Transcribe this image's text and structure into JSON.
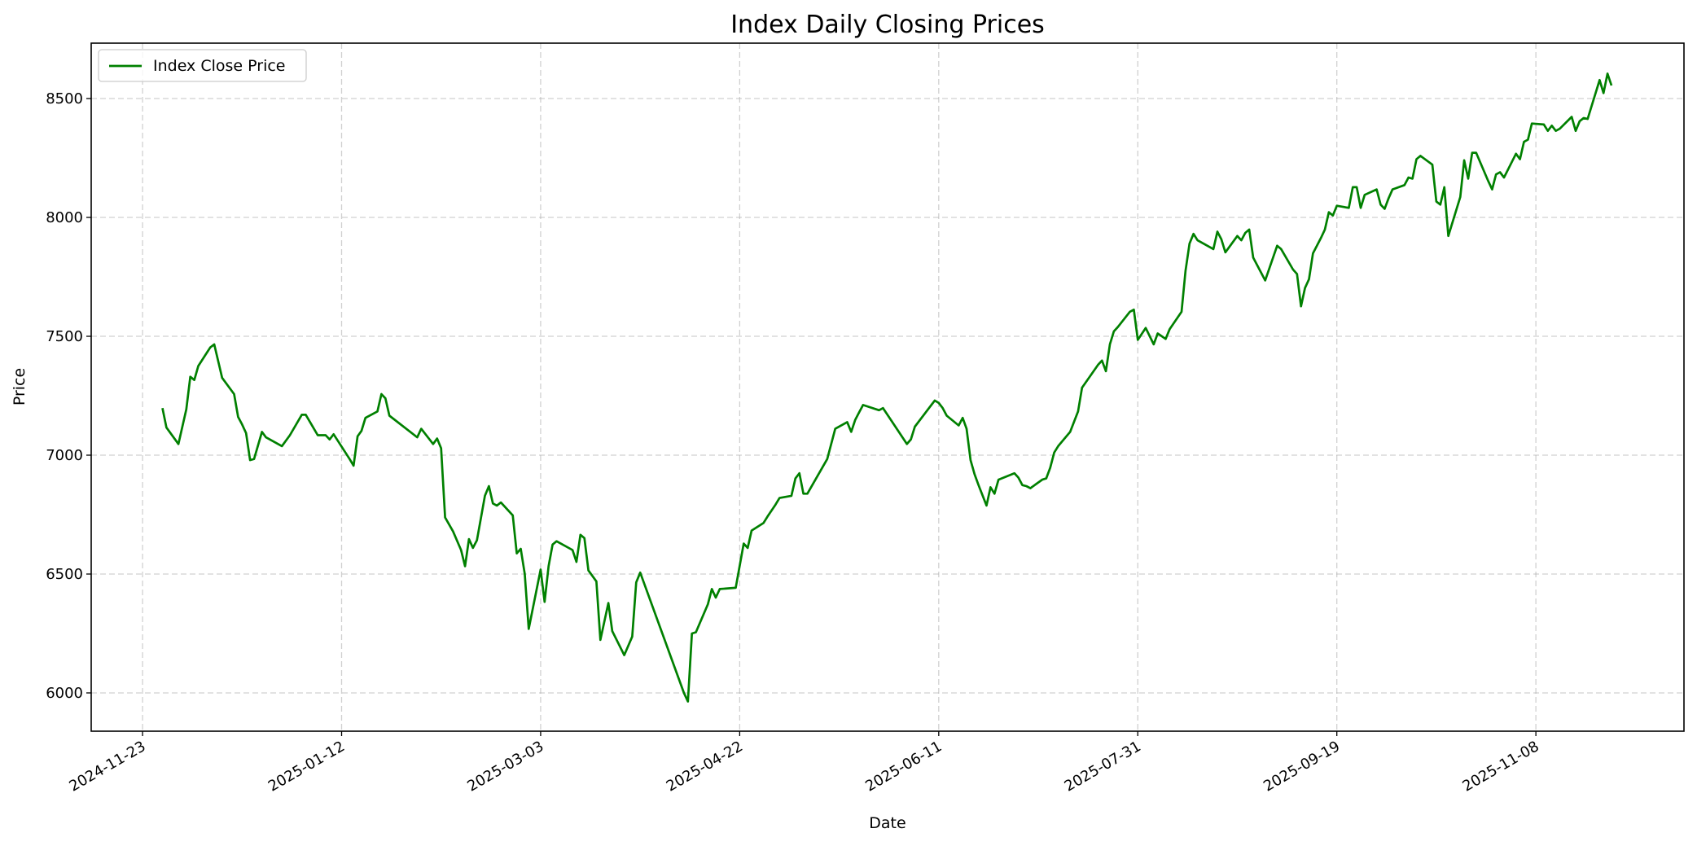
{
  "chart_data": {
    "type": "line",
    "title": "Index Daily Closing Prices",
    "xlabel": "Date",
    "ylabel": "Price",
    "x_origin": "2024-11-23",
    "x_unit": "days since 2024-11-23",
    "xlim": [
      -12.9,
      387.2
    ],
    "ylim": [
      5839,
      8733
    ],
    "grid": true,
    "legend_position": "top-left",
    "x_ticks": [
      {
        "day": 0,
        "label": "2024-11-23"
      },
      {
        "day": 50,
        "label": "2025-01-12"
      },
      {
        "day": 100,
        "label": "2025-03-03"
      },
      {
        "day": 150,
        "label": "2025-04-22"
      },
      {
        "day": 200,
        "label": "2025-06-11"
      },
      {
        "day": 250,
        "label": "2025-07-31"
      },
      {
        "day": 300,
        "label": "2025-09-19"
      },
      {
        "day": 350,
        "label": "2025-11-08"
      }
    ],
    "y_ticks": [
      {
        "value": 6000,
        "label": "6000"
      },
      {
        "value": 6500,
        "label": "6500"
      },
      {
        "value": 7000,
        "label": "7000"
      },
      {
        "value": 7500,
        "label": "7500"
      },
      {
        "value": 8000,
        "label": "8000"
      },
      {
        "value": 8500,
        "label": "8500"
      }
    ],
    "series": [
      {
        "name": "Index Close Price",
        "color": "#008000",
        "points": [
          [
            5,
            7198
          ],
          [
            6,
            7116
          ],
          [
            9,
            7047
          ],
          [
            11,
            7193
          ],
          [
            12,
            7330
          ],
          [
            13,
            7316
          ],
          [
            14,
            7375
          ],
          [
            17,
            7453
          ],
          [
            18,
            7466
          ],
          [
            20,
            7325
          ],
          [
            23,
            7257
          ],
          [
            24,
            7161
          ],
          [
            25,
            7129
          ],
          [
            26,
            7093
          ],
          [
            27,
            6979
          ],
          [
            28,
            6984
          ],
          [
            30,
            7098
          ],
          [
            31,
            7075
          ],
          [
            35,
            7038
          ],
          [
            37,
            7084
          ],
          [
            40,
            7170
          ],
          [
            41,
            7170
          ],
          [
            44,
            7084
          ],
          [
            46,
            7084
          ],
          [
            47,
            7066
          ],
          [
            48,
            7088
          ],
          [
            52,
            6984
          ],
          [
            53,
            6956
          ],
          [
            54,
            7079
          ],
          [
            55,
            7102
          ],
          [
            56,
            7157
          ],
          [
            59,
            7184
          ],
          [
            60,
            7257
          ],
          [
            61,
            7239
          ],
          [
            62,
            7166
          ],
          [
            69,
            7075
          ],
          [
            70,
            7111
          ],
          [
            73,
            7047
          ],
          [
            74,
            7070
          ],
          [
            75,
            7029
          ],
          [
            76,
            6738
          ],
          [
            78,
            6679
          ],
          [
            80,
            6601
          ],
          [
            81,
            6533
          ],
          [
            82,
            6647
          ],
          [
            83,
            6610
          ],
          [
            84,
            6642
          ],
          [
            86,
            6829
          ],
          [
            87,
            6870
          ],
          [
            88,
            6797
          ],
          [
            89,
            6788
          ],
          [
            90,
            6801
          ],
          [
            93,
            6747
          ],
          [
            94,
            6587
          ],
          [
            95,
            6606
          ],
          [
            96,
            6501
          ],
          [
            97,
            6269
          ],
          [
            100,
            6519
          ],
          [
            101,
            6383
          ],
          [
            102,
            6533
          ],
          [
            103,
            6624
          ],
          [
            104,
            6638
          ],
          [
            108,
            6601
          ],
          [
            109,
            6551
          ],
          [
            110,
            6665
          ],
          [
            111,
            6651
          ],
          [
            112,
            6515
          ],
          [
            114,
            6469
          ],
          [
            115,
            6223
          ],
          [
            117,
            6378
          ],
          [
            118,
            6260
          ],
          [
            121,
            6159
          ],
          [
            123,
            6237
          ],
          [
            124,
            6465
          ],
          [
            125,
            6506
          ],
          [
            136,
            6000
          ],
          [
            137,
            5964
          ],
          [
            138,
            6250
          ],
          [
            139,
            6255
          ],
          [
            142,
            6373
          ],
          [
            143,
            6437
          ],
          [
            144,
            6401
          ],
          [
            145,
            6437
          ],
          [
            149,
            6442
          ],
          [
            151,
            6628
          ],
          [
            152,
            6610
          ],
          [
            153,
            6683
          ],
          [
            156,
            6715
          ],
          [
            157,
            6742
          ],
          [
            159,
            6792
          ],
          [
            160,
            6820
          ],
          [
            163,
            6829
          ],
          [
            164,
            6902
          ],
          [
            165,
            6924
          ],
          [
            166,
            6838
          ],
          [
            167,
            6838
          ],
          [
            172,
            6984
          ],
          [
            174,
            7111
          ],
          [
            177,
            7139
          ],
          [
            178,
            7098
          ],
          [
            179,
            7148
          ],
          [
            180,
            7180
          ],
          [
            181,
            7211
          ],
          [
            185,
            7189
          ],
          [
            186,
            7198
          ],
          [
            192,
            7047
          ],
          [
            193,
            7066
          ],
          [
            194,
            7120
          ],
          [
            199,
            7230
          ],
          [
            200,
            7220
          ],
          [
            201,
            7198
          ],
          [
            202,
            7166
          ],
          [
            205,
            7125
          ],
          [
            206,
            7157
          ],
          [
            207,
            7111
          ],
          [
            208,
            6979
          ],
          [
            209,
            6920
          ],
          [
            210,
            6874
          ],
          [
            212,
            6788
          ],
          [
            213,
            6865
          ],
          [
            214,
            6838
          ],
          [
            215,
            6897
          ],
          [
            219,
            6924
          ],
          [
            220,
            6906
          ],
          [
            221,
            6874
          ],
          [
            222,
            6870
          ],
          [
            223,
            6861
          ],
          [
            226,
            6897
          ],
          [
            227,
            6902
          ],
          [
            228,
            6947
          ],
          [
            229,
            7011
          ],
          [
            230,
            7038
          ],
          [
            233,
            7098
          ],
          [
            235,
            7184
          ],
          [
            236,
            7284
          ],
          [
            240,
            7380
          ],
          [
            241,
            7398
          ],
          [
            242,
            7353
          ],
          [
            243,
            7466
          ],
          [
            244,
            7521
          ],
          [
            245,
            7539
          ],
          [
            248,
            7603
          ],
          [
            249,
            7612
          ],
          [
            250,
            7485
          ],
          [
            252,
            7535
          ],
          [
            254,
            7466
          ],
          [
            255,
            7512
          ],
          [
            257,
            7489
          ],
          [
            258,
            7530
          ],
          [
            261,
            7603
          ],
          [
            262,
            7776
          ],
          [
            263,
            7890
          ],
          [
            264,
            7931
          ],
          [
            265,
            7904
          ],
          [
            269,
            7867
          ],
          [
            270,
            7940
          ],
          [
            271,
            7908
          ],
          [
            272,
            7853
          ],
          [
            275,
            7922
          ],
          [
            276,
            7904
          ],
          [
            277,
            7935
          ],
          [
            278,
            7949
          ],
          [
            279,
            7831
          ],
          [
            282,
            7735
          ],
          [
            285,
            7881
          ],
          [
            286,
            7867
          ],
          [
            289,
            7781
          ],
          [
            290,
            7762
          ],
          [
            291,
            7626
          ],
          [
            292,
            7703
          ],
          [
            293,
            7740
          ],
          [
            294,
            7849
          ],
          [
            296,
            7913
          ],
          [
            297,
            7949
          ],
          [
            298,
            8022
          ],
          [
            299,
            8008
          ],
          [
            300,
            8049
          ],
          [
            303,
            8040
          ],
          [
            304,
            8127
          ],
          [
            305,
            8127
          ],
          [
            306,
            8040
          ],
          [
            307,
            8095
          ],
          [
            310,
            8118
          ],
          [
            311,
            8054
          ],
          [
            312,
            8036
          ],
          [
            313,
            8081
          ],
          [
            314,
            8118
          ],
          [
            317,
            8136
          ],
          [
            318,
            8168
          ],
          [
            319,
            8163
          ],
          [
            320,
            8245
          ],
          [
            321,
            8259
          ],
          [
            324,
            8222
          ],
          [
            325,
            8067
          ],
          [
            326,
            8054
          ],
          [
            327,
            8127
          ],
          [
            328,
            7922
          ],
          [
            331,
            8086
          ],
          [
            332,
            8240
          ],
          [
            333,
            8163
          ],
          [
            334,
            8272
          ],
          [
            335,
            8272
          ],
          [
            338,
            8154
          ],
          [
            339,
            8118
          ],
          [
            340,
            8181
          ],
          [
            341,
            8190
          ],
          [
            342,
            8168
          ],
          [
            345,
            8268
          ],
          [
            346,
            8245
          ],
          [
            347,
            8318
          ],
          [
            348,
            8327
          ],
          [
            349,
            8395
          ],
          [
            352,
            8391
          ],
          [
            353,
            8364
          ],
          [
            354,
            8386
          ],
          [
            355,
            8364
          ],
          [
            356,
            8373
          ],
          [
            359,
            8423
          ],
          [
            360,
            8364
          ],
          [
            361,
            8405
          ],
          [
            362,
            8418
          ],
          [
            363,
            8414
          ],
          [
            366,
            8578
          ],
          [
            367,
            8523
          ],
          [
            368,
            8605
          ],
          [
            369,
            8555
          ]
        ]
      }
    ]
  }
}
